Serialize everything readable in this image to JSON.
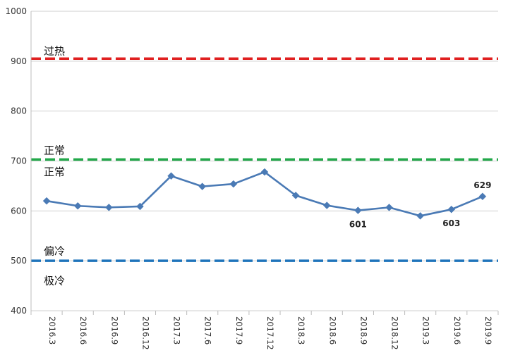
{
  "chart_data": {
    "type": "line",
    "title": "",
    "xlabel": "",
    "ylabel": "",
    "ylim": [
      400,
      1000
    ],
    "yticks": [
      400,
      500,
      600,
      700,
      800,
      900,
      1000
    ],
    "grid": "horizontal",
    "categories": [
      "2016.3",
      "2016.6",
      "2016.9",
      "2016.12",
      "2017.3",
      "2017.6",
      "2017.9",
      "2017.12",
      "2018.3",
      "2018.6",
      "2018.9",
      "2018.12",
      "2019.3",
      "2019.6",
      "2019.9"
    ],
    "series": [
      {
        "values": [
          620,
          610,
          607,
          609,
          670,
          649,
          654,
          678,
          631,
          611,
          601,
          607,
          590,
          603,
          629
        ],
        "color": "#4a7ab5",
        "marker": "diamond"
      }
    ],
    "data_labels": [
      {
        "index": 10,
        "text": "601",
        "position": "below"
      },
      {
        "index": 13,
        "text": "603",
        "position": "below"
      },
      {
        "index": 14,
        "text": "629",
        "position": "above"
      }
    ],
    "reference_lines": [
      {
        "value": 905,
        "color": "#e02020",
        "style": "dashed"
      },
      {
        "value": 703,
        "color": "#22a84a",
        "style": "dashed"
      },
      {
        "value": 500,
        "color": "#1f74bb",
        "style": "dashed"
      }
    ],
    "zone_labels": [
      {
        "text": "过热",
        "value": 920
      },
      {
        "text": "正常",
        "value": 721
      },
      {
        "text": "正常",
        "value": 678
      },
      {
        "text": "偏冷",
        "value": 519
      },
      {
        "text": "极冷",
        "value": 460
      }
    ]
  }
}
